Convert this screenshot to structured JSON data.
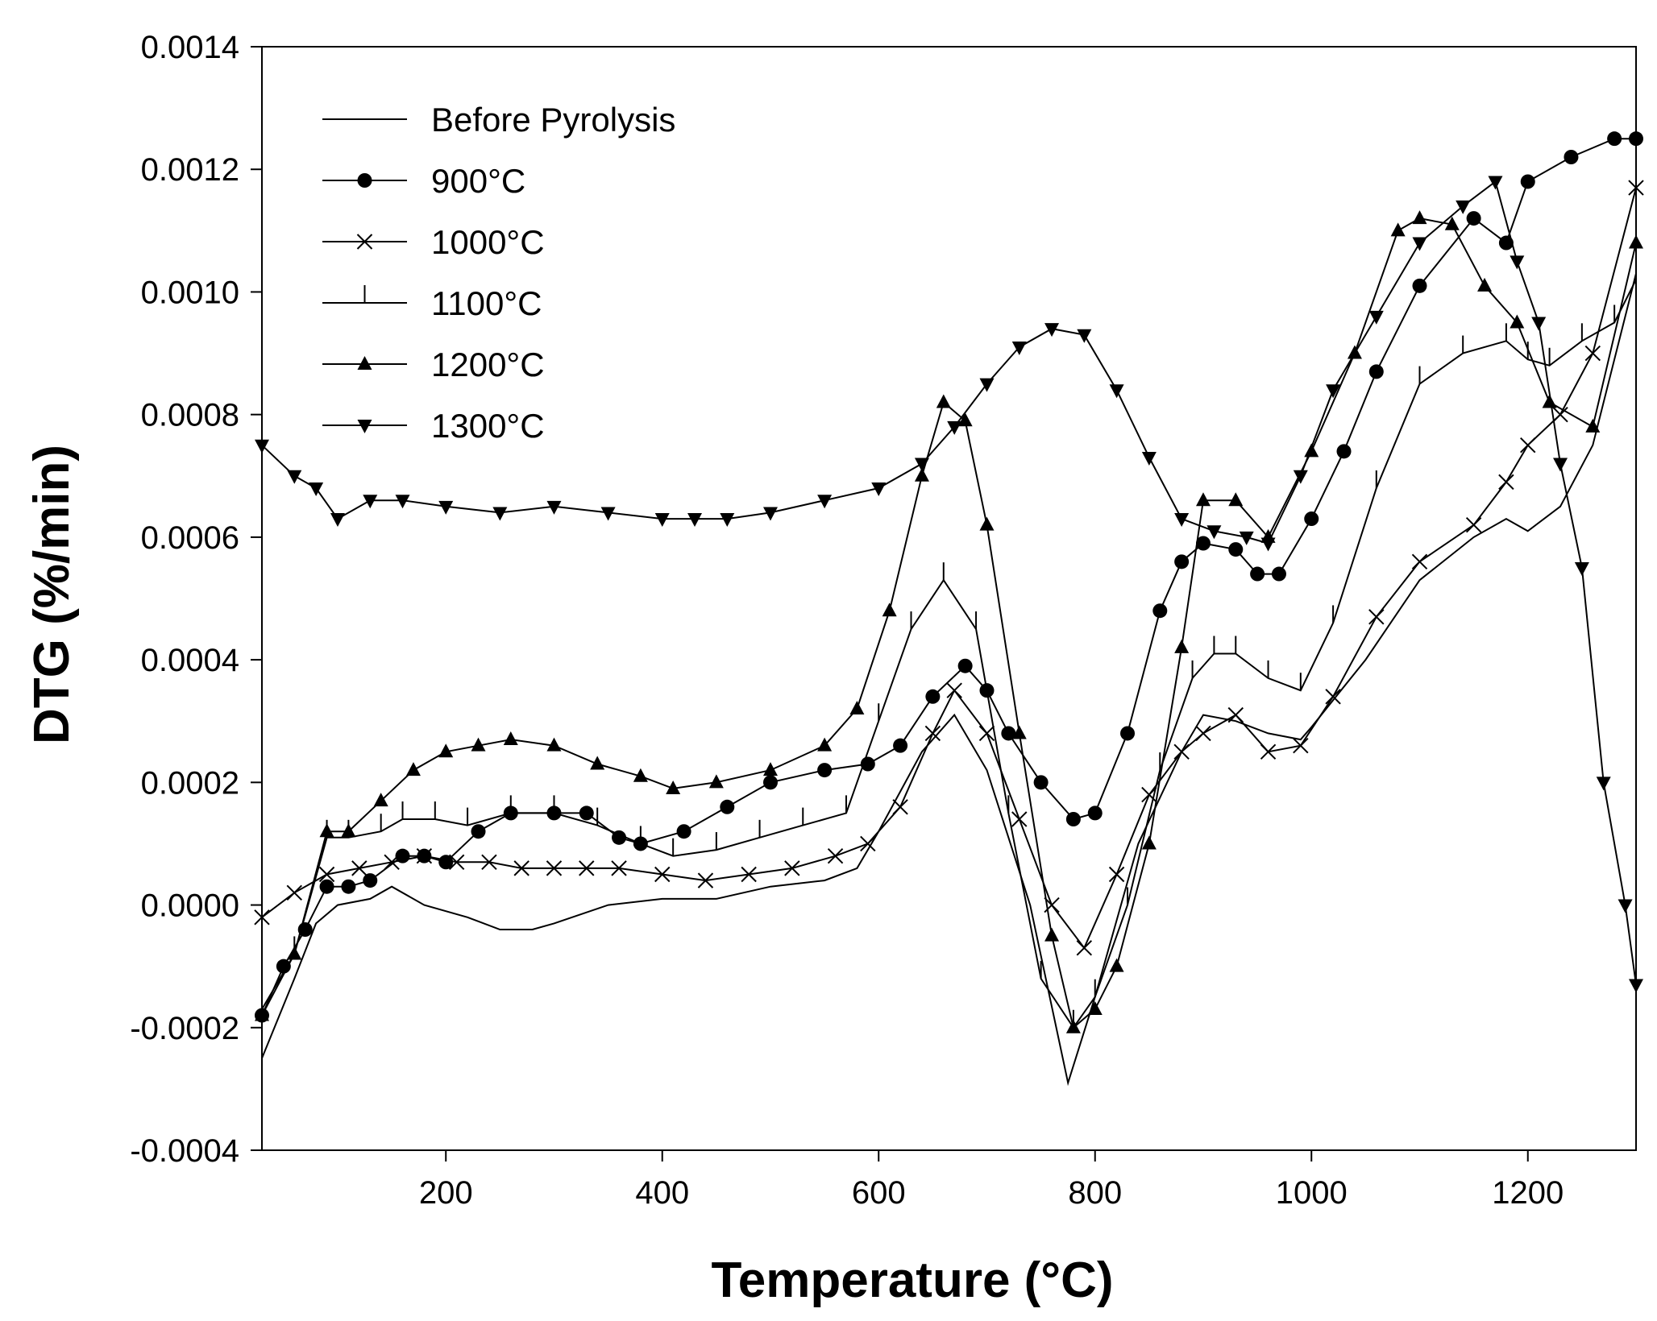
{
  "chart_data": {
    "type": "line",
    "title": "",
    "xlabel": "Temperature (°C)",
    "ylabel": "DTG (%/min)",
    "xlim": [
      30,
      1300
    ],
    "ylim": [
      -0.0004,
      0.0014
    ],
    "xticks": [
      200,
      400,
      600,
      800,
      1000,
      1200
    ],
    "xtick_labels": [
      "200",
      "400",
      "600",
      "800",
      "1000",
      "1200"
    ],
    "yticks": [
      -0.0004,
      -0.0002,
      0.0,
      0.0002,
      0.0004,
      0.0006,
      0.0008,
      0.001,
      0.0012,
      0.0014
    ],
    "ytick_labels": [
      "-0.0004",
      "-0.0002",
      "0.0000",
      "0.0002",
      "0.0004",
      "0.0006",
      "0.0008",
      "0.0010",
      "0.0012",
      "0.0014"
    ],
    "grid": false,
    "legend_position": "top-left",
    "series": [
      {
        "name": "Before Pyrolysis",
        "marker": "none",
        "x": [
          30,
          60,
          80,
          100,
          130,
          150,
          180,
          220,
          250,
          280,
          300,
          350,
          400,
          450,
          500,
          550,
          580,
          600,
          640,
          670,
          700,
          740,
          775,
          800,
          840,
          880,
          900,
          930,
          960,
          990,
          1000,
          1050,
          1100,
          1150,
          1180,
          1200,
          1230,
          1260,
          1300
        ],
        "values": [
          -0.00025,
          -0.00012,
          -3e-05,
          0.0,
          1e-05,
          3e-05,
          0.0,
          -2e-05,
          -4e-05,
          -4e-05,
          -3e-05,
          0.0,
          1e-05,
          1e-05,
          3e-05,
          4e-05,
          6e-05,
          0.00012,
          0.00025,
          0.00031,
          0.00022,
          0.0,
          -0.00029,
          -0.00015,
          0.0001,
          0.00025,
          0.00031,
          0.0003,
          0.00028,
          0.00027,
          0.00029,
          0.0004,
          0.00053,
          0.0006,
          0.00063,
          0.00061,
          0.00065,
          0.00075,
          0.00103
        ]
      },
      {
        "name": "900°C",
        "marker": "circle",
        "x": [
          30,
          50,
          70,
          90,
          110,
          130,
          160,
          180,
          200,
          230,
          260,
          300,
          330,
          360,
          380,
          420,
          460,
          500,
          550,
          590,
          620,
          650,
          680,
          700,
          720,
          750,
          780,
          800,
          830,
          860,
          880,
          900,
          930,
          950,
          970,
          1000,
          1030,
          1060,
          1100,
          1150,
          1180,
          1200,
          1240,
          1280,
          1300
        ],
        "values": [
          -0.00018,
          -0.0001,
          -4e-05,
          3e-05,
          3e-05,
          4e-05,
          8e-05,
          8e-05,
          7e-05,
          0.00012,
          0.00015,
          0.00015,
          0.00015,
          0.00011,
          0.0001,
          0.00012,
          0.00016,
          0.0002,
          0.00022,
          0.00023,
          0.00026,
          0.00034,
          0.00039,
          0.00035,
          0.00028,
          0.0002,
          0.00014,
          0.00015,
          0.00028,
          0.00048,
          0.00056,
          0.00059,
          0.00058,
          0.00054,
          0.00054,
          0.00063,
          0.00074,
          0.00087,
          0.00101,
          0.00112,
          0.00108,
          0.00118,
          0.00122,
          0.00125,
          0.00125
        ]
      },
      {
        "name": "1000°C",
        "marker": "x",
        "x": [
          30,
          60,
          90,
          120,
          150,
          180,
          210,
          240,
          270,
          300,
          330,
          360,
          400,
          440,
          480,
          520,
          560,
          590,
          620,
          650,
          670,
          700,
          730,
          760,
          790,
          820,
          850,
          880,
          900,
          930,
          960,
          990,
          1020,
          1060,
          1100,
          1150,
          1180,
          1200,
          1230,
          1260,
          1300
        ],
        "values": [
          -2e-05,
          2e-05,
          5e-05,
          6e-05,
          7e-05,
          8e-05,
          7e-05,
          7e-05,
          6e-05,
          6e-05,
          6e-05,
          6e-05,
          5e-05,
          4e-05,
          5e-05,
          6e-05,
          8e-05,
          0.0001,
          0.00016,
          0.00028,
          0.00035,
          0.00028,
          0.00014,
          0.0,
          -7e-05,
          5e-05,
          0.00018,
          0.00025,
          0.00028,
          0.00031,
          0.00025,
          0.00026,
          0.00034,
          0.00047,
          0.00056,
          0.00062,
          0.00069,
          0.00075,
          0.0008,
          0.0009,
          0.00117
        ]
      },
      {
        "name": "1100°C",
        "marker": "tick",
        "x": [
          30,
          60,
          90,
          110,
          140,
          160,
          190,
          220,
          260,
          300,
          340,
          380,
          410,
          450,
          490,
          530,
          570,
          600,
          630,
          660,
          690,
          720,
          750,
          780,
          800,
          830,
          860,
          890,
          910,
          930,
          960,
          990,
          1020,
          1060,
          1100,
          1140,
          1180,
          1200,
          1220,
          1250,
          1280,
          1300
        ],
        "values": [
          -0.00017,
          -8e-05,
          0.00011,
          0.00011,
          0.00012,
          0.00014,
          0.00014,
          0.00013,
          0.00015,
          0.00015,
          0.00013,
          0.0001,
          8e-05,
          9e-05,
          0.00011,
          0.00013,
          0.00015,
          0.0003,
          0.00045,
          0.00053,
          0.00045,
          0.00015,
          -0.00012,
          -0.0002,
          -0.00015,
          0.0,
          0.00022,
          0.00037,
          0.00041,
          0.00041,
          0.00037,
          0.00035,
          0.00046,
          0.00068,
          0.00085,
          0.0009,
          0.00092,
          0.00089,
          0.00088,
          0.00092,
          0.00095,
          0.00102
        ]
      },
      {
        "name": "1200°C",
        "marker": "triangle-up",
        "x": [
          30,
          60,
          90,
          110,
          140,
          170,
          200,
          230,
          260,
          300,
          340,
          380,
          410,
          450,
          500,
          550,
          580,
          610,
          640,
          660,
          680,
          700,
          730,
          760,
          780,
          800,
          820,
          850,
          880,
          900,
          930,
          960,
          1000,
          1040,
          1080,
          1100,
          1130,
          1160,
          1190,
          1220,
          1260,
          1300
        ],
        "values": [
          -0.00018,
          -8e-05,
          0.00012,
          0.00012,
          0.00017,
          0.00022,
          0.00025,
          0.00026,
          0.00027,
          0.00026,
          0.00023,
          0.00021,
          0.00019,
          0.0002,
          0.00022,
          0.00026,
          0.00032,
          0.00048,
          0.0007,
          0.00082,
          0.00079,
          0.00062,
          0.00028,
          -5e-05,
          -0.0002,
          -0.00017,
          -0.0001,
          0.0001,
          0.00042,
          0.00066,
          0.00066,
          0.0006,
          0.00074,
          0.0009,
          0.0011,
          0.00112,
          0.00111,
          0.00101,
          0.00095,
          0.00082,
          0.00078,
          0.00108
        ]
      },
      {
        "name": "1300°C",
        "marker": "triangle-down",
        "x": [
          30,
          60,
          80,
          100,
          130,
          160,
          200,
          250,
          300,
          350,
          400,
          430,
          460,
          500,
          550,
          600,
          640,
          670,
          700,
          730,
          760,
          790,
          820,
          850,
          880,
          910,
          940,
          960,
          990,
          1020,
          1060,
          1100,
          1140,
          1170,
          1190,
          1210,
          1230,
          1250,
          1270,
          1290,
          1300
        ],
        "values": [
          0.00075,
          0.0007,
          0.00068,
          0.00063,
          0.00066,
          0.00066,
          0.00065,
          0.00064,
          0.00065,
          0.00064,
          0.00063,
          0.00063,
          0.00063,
          0.00064,
          0.00066,
          0.00068,
          0.00072,
          0.00078,
          0.00085,
          0.00091,
          0.00094,
          0.00093,
          0.00084,
          0.00073,
          0.00063,
          0.00061,
          0.0006,
          0.00059,
          0.0007,
          0.00084,
          0.00096,
          0.00108,
          0.00114,
          0.00118,
          0.00105,
          0.00095,
          0.00072,
          0.00055,
          0.0002,
          0.0,
          -0.00013
        ]
      }
    ]
  }
}
